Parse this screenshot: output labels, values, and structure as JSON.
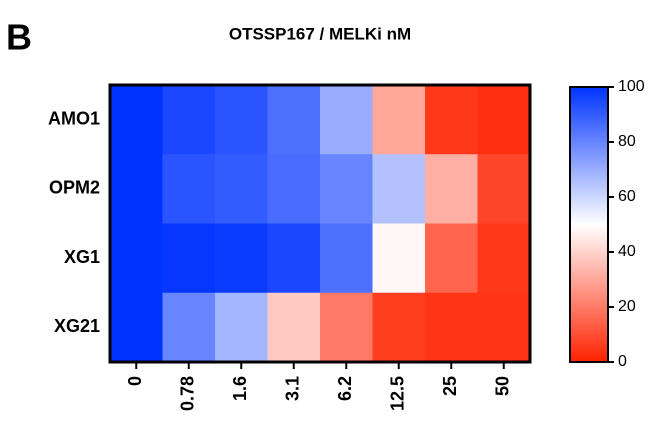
{
  "panel_label": "B",
  "chart_data": {
    "type": "heatmap",
    "title": "OTSSP167 / MELKi nM",
    "x": [
      "0",
      "0.78",
      "1.6",
      "3.1",
      "6.2",
      "12.5",
      "25",
      "50"
    ],
    "categories": [
      "AMO1",
      "OPM2",
      "XG1",
      "XG21"
    ],
    "values": [
      [
        100,
        95,
        92,
        85,
        70,
        30,
        5,
        3
      ],
      [
        100,
        92,
        90,
        86,
        80,
        65,
        32,
        8
      ],
      [
        100,
        99,
        98,
        95,
        85,
        48,
        15,
        5
      ],
      [
        100,
        80,
        68,
        38,
        20,
        6,
        4,
        4
      ]
    ],
    "colorscale": [
      "#ff2200",
      "#ffffff",
      "#0033ff"
    ],
    "clim": [
      0,
      100
    ],
    "cticks": [
      0,
      20,
      40,
      60,
      80,
      100
    ]
  }
}
